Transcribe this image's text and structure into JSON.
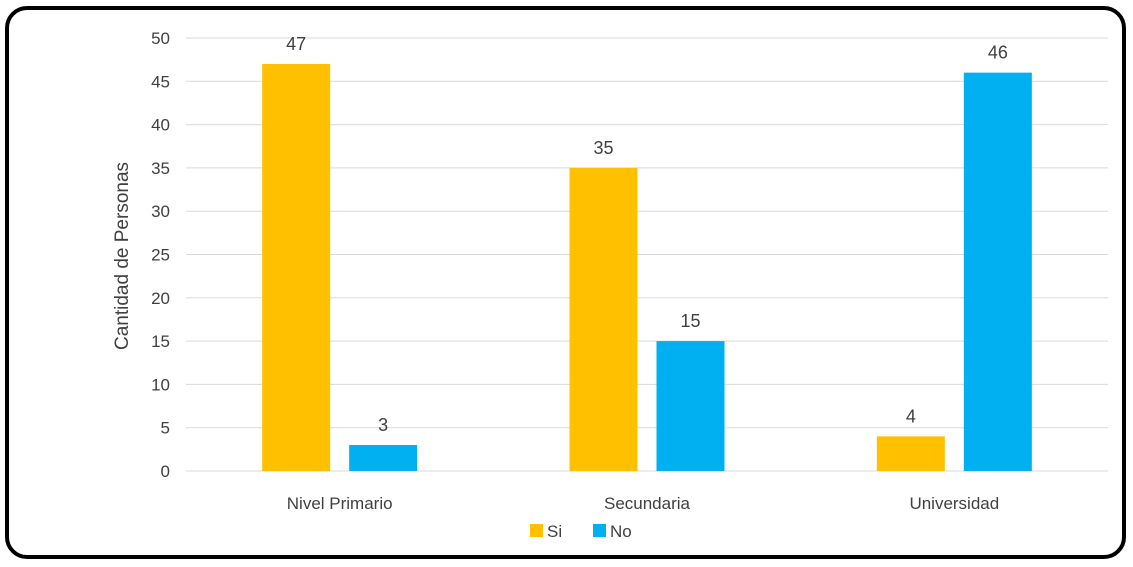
{
  "chart_data": {
    "type": "bar",
    "categories": [
      "Nivel Primario",
      "Secundaria",
      "Universidad"
    ],
    "series": [
      {
        "name": "Si",
        "values": [
          47,
          35,
          4
        ],
        "color": "#FFC000"
      },
      {
        "name": "No",
        "values": [
          3,
          15,
          46
        ],
        "color": "#00B0F0"
      }
    ],
    "title": "",
    "xlabel": "",
    "ylabel": "Cantidad de Personas",
    "ylim": [
      0,
      50
    ],
    "yticks": [
      0,
      5,
      10,
      15,
      20,
      25,
      30,
      35,
      40,
      45,
      50
    ],
    "grid": true,
    "legend": "bottom-center",
    "data_labels": true
  }
}
